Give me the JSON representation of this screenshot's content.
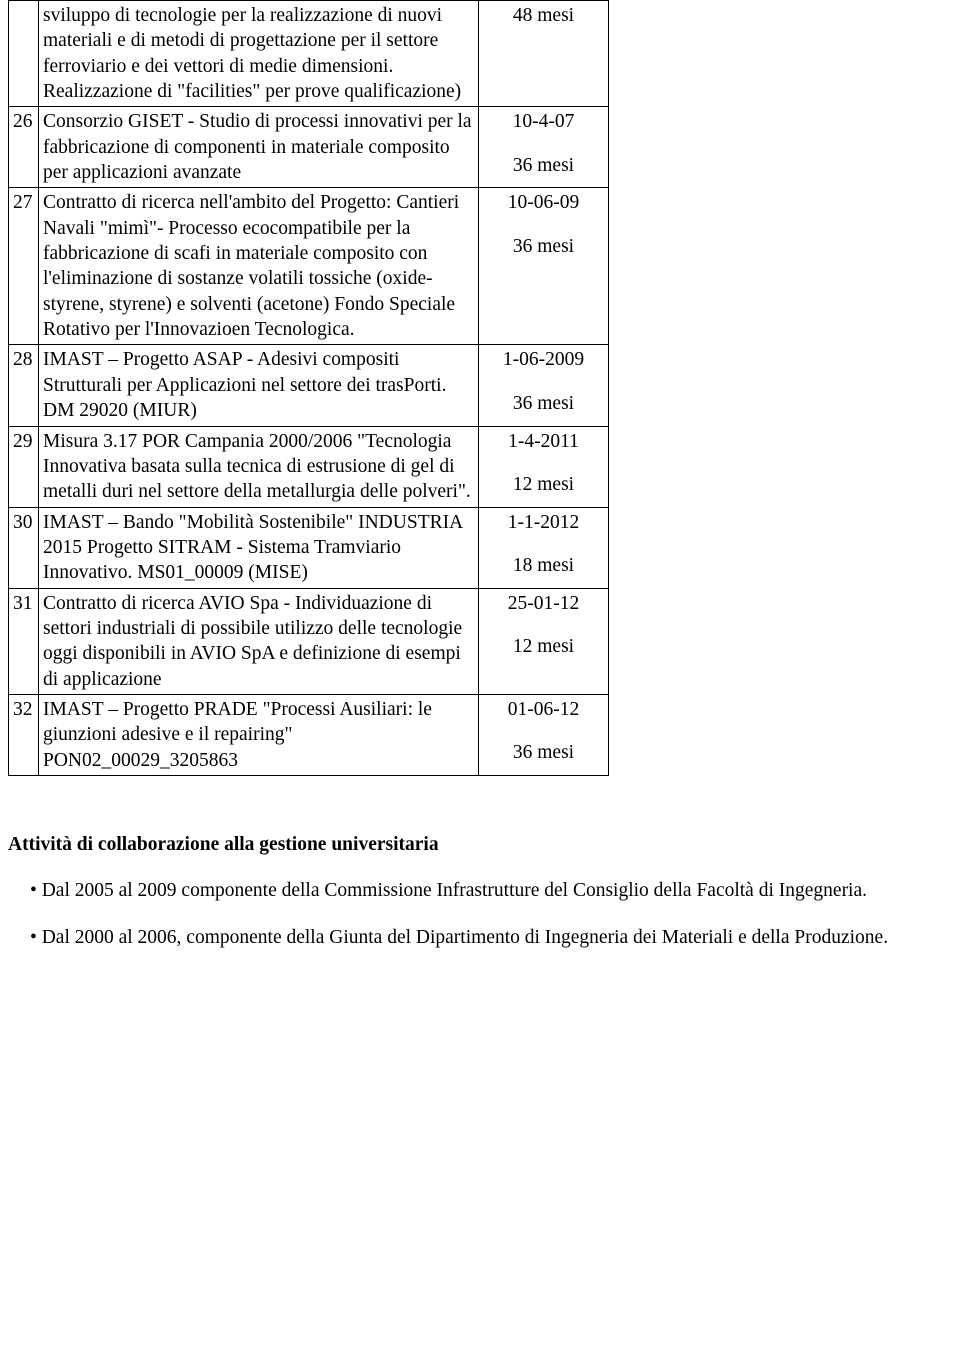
{
  "rows": [
    {
      "num": "",
      "desc": "sviluppo di tecnologie per la realizzazione di nuovi materiali e di metodi di progettazione per il settore ferroviario e dei vettori di medie dimensioni. Realizzazione di \"facilities\" per prove qualificazione)",
      "date": "48 mesi",
      "duration": ""
    },
    {
      "num": "26",
      "desc": "Consorzio GISET - Studio di processi innovativi per la fabbricazione di componenti in materiale composito per applicazioni avanzate",
      "date": "10-4-07",
      "duration": "36 mesi"
    },
    {
      "num": "27",
      "desc": "Contratto di ricerca nell'ambito del Progetto:  Cantieri Navali \"mimì\"- Processo ecocompatibile per la fabbricazione di scafi in materiale composito con l'eliminazione di sostanze volatili tossiche (oxide-styrene, styrene) e solventi (acetone) Fondo Speciale Rotativo per l'Innovazioen Tecnologica.",
      "date": "10-06-09",
      "duration": "36 mesi"
    },
    {
      "num": "28",
      "desc": "IMAST – Progetto ASAP - Adesivi compositi Strutturali per Applicazioni nel settore dei  trasPorti. DM 29020 (MIUR)",
      "date": "1-06-2009",
      "duration": "36 mesi"
    },
    {
      "num": "29",
      "desc": "Misura 3.17 POR Campania 2000/2006 \"Tecnologia Innovativa basata sulla  tecnica di estrusione di gel di metalli duri nel settore della metallurgia delle polveri\".",
      "date": "1-4-2011",
      "duration": "12 mesi"
    },
    {
      "num": "30",
      "desc": "IMAST – Bando \"Mobilità Sostenibile\" INDUSTRIA 2015 Progetto SITRAM - Sistema Tramviario Innovativo. MS01_00009 (MISE)",
      "date": "1-1-2012",
      "duration": "18 mesi"
    },
    {
      "num": "31",
      "desc": "Contratto di ricerca AVIO Spa - Individuazione di settori industriali di possibile utilizzo delle tecnologie oggi disponibili in AVIO SpA e definizione di esempi di applicazione",
      "date": "25-01-12",
      "duration": "12 mesi"
    },
    {
      "num": "32",
      "desc": "IMAST – Progetto PRADE \"Processi Ausiliari: le giunzioni adesive e il repairing\" PON02_00029_3205863",
      "date": "01-06-12",
      "duration": "36 mesi"
    }
  ],
  "section_title": "Attività di collaborazione alla gestione universitaria",
  "bullets": [
    "Dal 2005 al 2009 componente della Commissione Infrastrutture del Consiglio della Facoltà di Ingegneria.",
    "Dal 2000 al 2006, componente della Giunta del Dipartimento di Ingegneria dei Materiali e della Produzione."
  ]
}
